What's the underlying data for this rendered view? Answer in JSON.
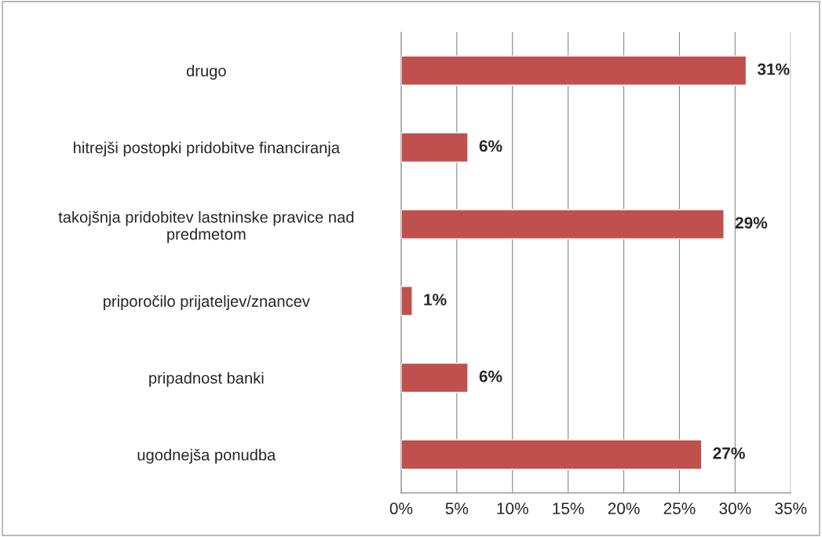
{
  "chart_data": {
    "type": "bar",
    "orientation": "horizontal",
    "categories": [
      "drugo",
      "hitrejši postopki pridobitve financiranja",
      "takojšnja pridobitev lastninske pravice nad\npredmetom",
      "priporočilo prijateljev/znancev",
      "pripadnost banki",
      "ugodnejša ponudba"
    ],
    "values": [
      31,
      6,
      29,
      1,
      6,
      27
    ],
    "value_labels": [
      "31%",
      "6%",
      "29%",
      "1%",
      "6%",
      "27%"
    ],
    "color": "#c0504d",
    "xlim": [
      0,
      35
    ],
    "xticks": [
      {
        "value": 0,
        "label": "0%"
      },
      {
        "value": 5,
        "label": "5%"
      },
      {
        "value": 10,
        "label": "10%"
      },
      {
        "value": 15,
        "label": "15%"
      },
      {
        "value": 20,
        "label": "20%"
      },
      {
        "value": 25,
        "label": "25%"
      },
      {
        "value": 30,
        "label": "30%"
      },
      {
        "value": 35,
        "label": "35%"
      }
    ],
    "grid": "x",
    "legend": false
  }
}
